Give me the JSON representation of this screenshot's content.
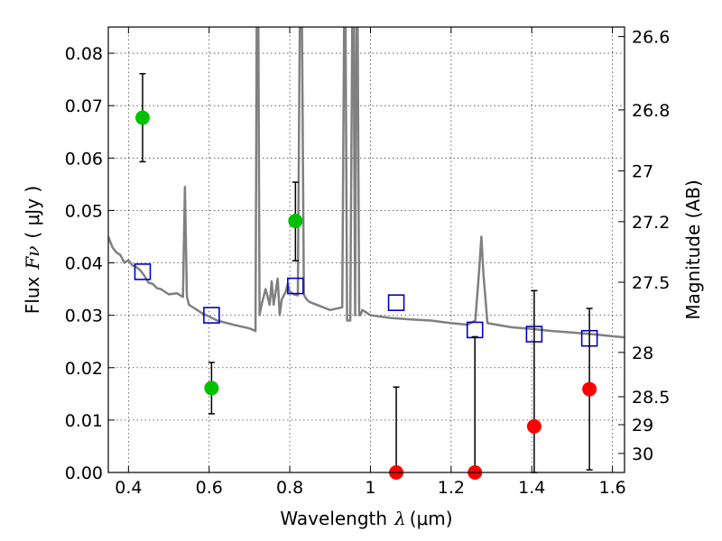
{
  "chart_data": {
    "type": "scatter",
    "title": "",
    "xlabel": "Wavelength",
    "xlabel_symbol": "λ",
    "xlabel_unit": "(μm)",
    "ylabel": "Flux",
    "ylabel_symbol": "Fν",
    "ylabel_unit": "( μJy )",
    "y2label": "Magnitude (AB)",
    "xlim": [
      0.35,
      1.63
    ],
    "ylim": [
      0.0,
      0.085
    ],
    "grid": true,
    "x_ticks": [
      {
        "v": 0.4,
        "label": "0.4"
      },
      {
        "v": 0.6,
        "label": "0.6"
      },
      {
        "v": 0.8,
        "label": "0.8"
      },
      {
        "v": 1.0,
        "label": "1"
      },
      {
        "v": 1.2,
        "label": "1.2"
      },
      {
        "v": 1.4,
        "label": "1.4"
      },
      {
        "v": 1.6,
        "label": "1.6"
      }
    ],
    "y_ticks": [
      {
        "v": 0.0,
        "label": "0.00"
      },
      {
        "v": 0.01,
        "label": "0.01"
      },
      {
        "v": 0.02,
        "label": "0.02"
      },
      {
        "v": 0.03,
        "label": "0.03"
      },
      {
        "v": 0.04,
        "label": "0.04"
      },
      {
        "v": 0.05,
        "label": "0.05"
      },
      {
        "v": 0.06,
        "label": "0.06"
      },
      {
        "v": 0.07,
        "label": "0.07"
      },
      {
        "v": 0.08,
        "label": "0.08"
      }
    ],
    "y2_ticks": [
      {
        "mag": 26.6,
        "label": "26.6"
      },
      {
        "mag": 26.8,
        "label": "26.8"
      },
      {
        "mag": 27.0,
        "label": "27"
      },
      {
        "mag": 27.2,
        "label": "27.2"
      },
      {
        "mag": 27.5,
        "label": "27.5"
      },
      {
        "mag": 28.0,
        "label": "28"
      },
      {
        "mag": 28.5,
        "label": "28.5"
      },
      {
        "mag": 29.0,
        "label": "29"
      },
      {
        "mag": 30.0,
        "label": "30"
      }
    ],
    "detections": {
      "color": "#00c000",
      "points": [
        {
          "x": 0.435,
          "y": 0.0677,
          "lo": 0.0593,
          "hi": 0.0761
        },
        {
          "x": 0.606,
          "y": 0.0161,
          "lo": 0.0112,
          "hi": 0.021
        },
        {
          "x": 0.814,
          "y": 0.048,
          "lo": 0.0404,
          "hi": 0.0554
        }
      ]
    },
    "non_detections": {
      "color": "#ff0000",
      "points": [
        {
          "x": 1.064,
          "y": 0.0,
          "lo": 0.0,
          "hi": 0.0163
        },
        {
          "x": 1.259,
          "y": 0.0,
          "lo": 0.0,
          "hi": 0.0259
        },
        {
          "x": 1.406,
          "y": 0.0088,
          "lo": 0.0,
          "hi": 0.0347
        },
        {
          "x": 1.543,
          "y": 0.0159,
          "lo": 0.0005,
          "hi": 0.0313
        }
      ]
    },
    "model_photometry": {
      "color": "#0000cc",
      "points": [
        {
          "x": 0.435,
          "y": 0.0383
        },
        {
          "x": 0.606,
          "y": 0.03
        },
        {
          "x": 0.814,
          "y": 0.0356
        },
        {
          "x": 1.064,
          "y": 0.0324
        },
        {
          "x": 1.259,
          "y": 0.0272
        },
        {
          "x": 1.406,
          "y": 0.0264
        },
        {
          "x": 1.543,
          "y": 0.0256
        }
      ]
    },
    "model_spectrum": {
      "color": "#808080",
      "x": [
        0.35,
        0.36,
        0.37,
        0.38,
        0.39,
        0.4,
        0.41,
        0.42,
        0.43,
        0.44,
        0.45,
        0.46,
        0.47,
        0.48,
        0.49,
        0.5,
        0.52,
        0.535,
        0.54,
        0.545,
        0.55,
        0.58,
        0.62,
        0.66,
        0.7,
        0.715,
        0.718,
        0.722,
        0.725,
        0.73,
        0.74,
        0.75,
        0.755,
        0.76,
        0.77,
        0.775,
        0.78,
        0.79,
        0.795,
        0.8,
        0.81,
        0.82,
        0.825,
        0.83,
        0.835,
        0.838,
        0.842,
        0.85,
        0.9,
        0.93,
        0.935,
        0.938,
        0.942,
        0.95,
        0.955,
        0.958,
        0.962,
        0.965,
        0.968,
        0.972,
        0.975,
        0.98,
        1.0,
        1.05,
        1.1,
        1.15,
        1.2,
        1.24,
        1.26,
        1.27,
        1.275,
        1.28,
        1.29,
        1.35,
        1.4,
        1.45,
        1.5,
        1.55,
        1.6,
        1.63
      ],
      "y": [
        0.045,
        0.043,
        0.042,
        0.0415,
        0.04,
        0.0405,
        0.0395,
        0.0392,
        0.0385,
        0.0375,
        0.0362,
        0.036,
        0.0352,
        0.035,
        0.0345,
        0.034,
        0.0342,
        0.0335,
        0.0545,
        0.0335,
        0.032,
        0.0305,
        0.029,
        0.0282,
        0.0275,
        0.027,
        0.088,
        0.088,
        0.03,
        0.032,
        0.035,
        0.032,
        0.0365,
        0.032,
        0.037,
        0.03,
        0.033,
        0.0345,
        0.036,
        0.0345,
        0.034,
        0.0338,
        0.088,
        0.088,
        0.034,
        0.0335,
        0.033,
        0.0325,
        0.031,
        0.0315,
        0.088,
        0.088,
        0.029,
        0.029,
        0.088,
        0.088,
        0.03,
        0.088,
        0.088,
        0.03,
        0.03,
        0.031,
        0.03,
        0.0295,
        0.0292,
        0.029,
        0.0285,
        0.0282,
        0.029,
        0.039,
        0.045,
        0.038,
        0.0285,
        0.0277,
        0.0274,
        0.027,
        0.0267,
        0.0264,
        0.026,
        0.0258
      ]
    }
  }
}
